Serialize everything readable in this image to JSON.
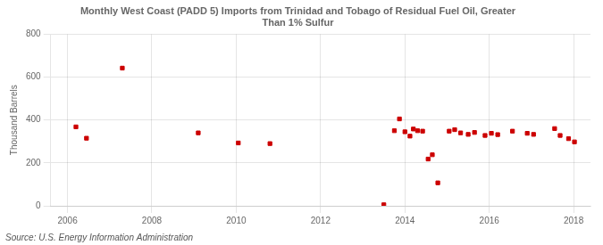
{
  "chart_data": {
    "type": "scatter",
    "title": "Monthly West Coast (PADD 5) Imports from Trinidad and Tobago of Residual Fuel Oil, Greater\nThan 1% Sulfur",
    "ylabel": "Thousand Barrels",
    "annotations": [
      "Source: U.S. Energy Information Administration"
    ],
    "color": "#cc0000",
    "marker": "square",
    "grid": true,
    "xlim": [
      2005.6,
      2018.4
    ],
    "xticks": [
      2006,
      2008,
      2010,
      2012,
      2014,
      2016,
      2018
    ],
    "ylim": [
      0,
      800
    ],
    "yticks": [
      0,
      200,
      400,
      600,
      800
    ],
    "x": [
      2006.2,
      2006.45,
      2007.3,
      2009.1,
      2010.05,
      2010.8,
      2013.5,
      2013.75,
      2013.87,
      2014.0,
      2014.12,
      2014.2,
      2014.3,
      2014.42,
      2014.55,
      2014.65,
      2014.78,
      2015.05,
      2015.18,
      2015.32,
      2015.5,
      2015.65,
      2015.9,
      2016.05,
      2016.2,
      2016.55,
      2016.9,
      2017.05,
      2017.55,
      2017.68,
      2017.88,
      2018.02
    ],
    "values": [
      368,
      315,
      642,
      340,
      293,
      290,
      5,
      350,
      405,
      345,
      325,
      358,
      350,
      348,
      218,
      238,
      107,
      348,
      355,
      340,
      333,
      342,
      328,
      338,
      332,
      348,
      338,
      333,
      360,
      328,
      313,
      298
    ]
  }
}
